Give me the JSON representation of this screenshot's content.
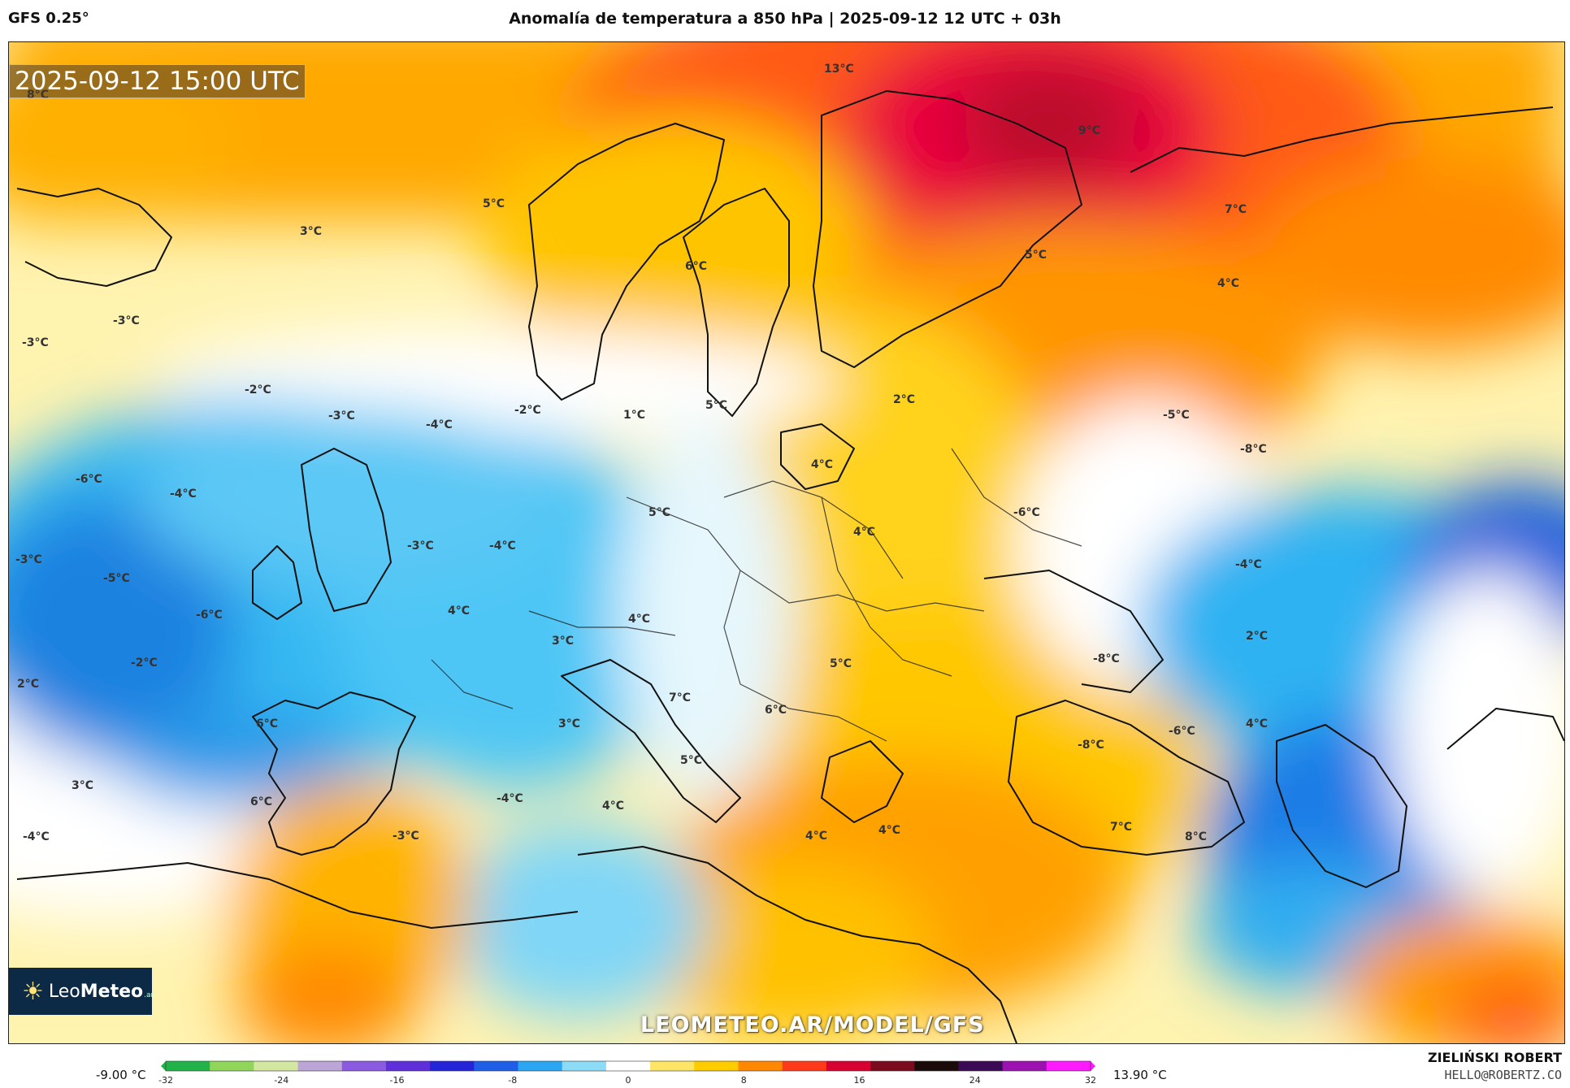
{
  "header": {
    "model": "GFS 0.25°",
    "title": "Anomalía de temperatura a 850 hPa | 2025-09-12 12 UTC + 03h"
  },
  "map": {
    "valid_time": "2025-09-12 15:00 UTC",
    "watermark": "LEOMETEO.AR/MODEL/GFS",
    "logo": {
      "name_light": "Leo",
      "name_bold": "Meteo",
      "suffix": ".ar"
    },
    "labels": [
      {
        "text": "8°C"
      },
      {
        "text": "13°C"
      },
      {
        "text": "9°C"
      },
      {
        "text": "5°C"
      },
      {
        "text": "3°C"
      },
      {
        "text": "6°C"
      },
      {
        "text": "7°C"
      },
      {
        "text": "5°C"
      },
      {
        "text": "4°C"
      },
      {
        "text": "-3°C"
      },
      {
        "text": "-3°C"
      },
      {
        "text": "-2°C"
      },
      {
        "text": "-3°C"
      },
      {
        "text": "-4°C"
      },
      {
        "text": "-2°C"
      },
      {
        "text": "1°C"
      },
      {
        "text": "5°C"
      },
      {
        "text": "2°C"
      },
      {
        "text": "-5°C"
      },
      {
        "text": "-8°C"
      },
      {
        "text": "-6°C"
      },
      {
        "text": "-4°C"
      },
      {
        "text": "4°C"
      },
      {
        "text": "5°C"
      },
      {
        "text": "-6°C"
      },
      {
        "text": "4°C"
      },
      {
        "text": "-3°C"
      },
      {
        "text": "-4°C"
      },
      {
        "text": "-3°C"
      },
      {
        "text": "-4°C"
      },
      {
        "text": "-5°C"
      },
      {
        "text": "-6°C"
      },
      {
        "text": "4°C"
      },
      {
        "text": "4°C"
      },
      {
        "text": "3°C"
      },
      {
        "text": "2°C"
      },
      {
        "text": "-2°C"
      },
      {
        "text": "2°C"
      },
      {
        "text": "-8°C"
      },
      {
        "text": "5°C"
      },
      {
        "text": "7°C"
      },
      {
        "text": "6°C"
      },
      {
        "text": "3°C"
      },
      {
        "text": "6°C"
      },
      {
        "text": "4°C"
      },
      {
        "text": "-8°C"
      },
      {
        "text": "-6°C"
      },
      {
        "text": "5°C"
      },
      {
        "text": "3°C"
      },
      {
        "text": "6°C"
      },
      {
        "text": "4°C"
      },
      {
        "text": "-4°C"
      },
      {
        "text": "-4°C"
      },
      {
        "text": "-3°C"
      },
      {
        "text": "4°C"
      },
      {
        "text": "4°C"
      },
      {
        "text": "7°C"
      },
      {
        "text": "8°C"
      }
    ]
  },
  "colorbar": {
    "min_label": "-9.00 °C",
    "max_label": "13.90 °C",
    "ticks": [
      "-32",
      "-24",
      "-16",
      "-8",
      "0",
      "8",
      "16",
      "24",
      "32"
    ],
    "stops": [
      "#21b24a",
      "#8fd65a",
      "#d3e7a0",
      "#bca6d8",
      "#8a5be0",
      "#5f2fd9",
      "#2424d8",
      "#1f5fe8",
      "#2aa6f2",
      "#8ddcf7",
      "#ffffff",
      "#ffe566",
      "#ffcc00",
      "#ff8800",
      "#ff3a1a",
      "#d80030",
      "#7a0a1e",
      "#1a0a0a",
      "#3a0a55",
      "#9b12b0",
      "#ff1aff"
    ]
  },
  "credits": {
    "author": "ZIELIŃSKI ROBERT",
    "email": "HELLO@ROBERTZ.CO"
  },
  "colors": {
    "cold_deep": "#0b5fd9",
    "cold": "#2ab4f2",
    "cool": "#9fe3fa",
    "neutral": "#ffffff",
    "warm": "#ffd21a",
    "warmer": "#ff9a00",
    "hot": "#ff4d10",
    "very_hot": "#e3003a"
  }
}
